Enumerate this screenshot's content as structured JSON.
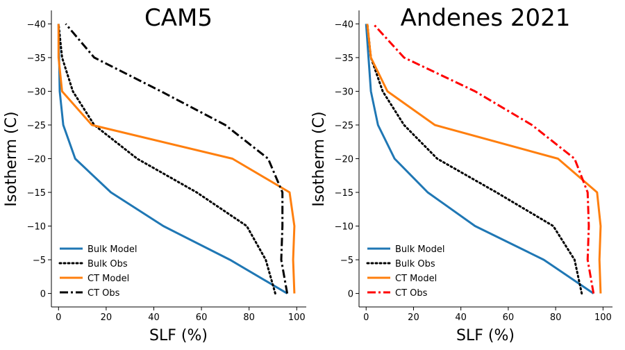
{
  "chart_data": [
    {
      "type": "line",
      "title": "CAM5",
      "xlabel": "SLF (%)",
      "ylabel": "Isotherm (C)",
      "xlim": [
        -3,
        104
      ],
      "ylim": [
        2,
        -42
      ],
      "xticks": [
        0,
        20,
        40,
        60,
        80,
        100
      ],
      "yticks": [
        -40,
        -35,
        -30,
        -25,
        -20,
        -15,
        -10,
        -5,
        0
      ],
      "x_tick_labels": [
        "0",
        "20",
        "40",
        "60",
        "80",
        "100"
      ],
      "y_tick_labels": [
        "−40",
        "−35",
        "−30",
        "−25",
        "−20",
        "−15",
        "−10",
        "−5",
        "0"
      ],
      "legend_position": "lower-left",
      "series": [
        {
          "name": "Bulk Model",
          "color": "#1f77b4",
          "style": "solid",
          "x": [
            96,
            72,
            44,
            22,
            7,
            2,
            0.5,
            0
          ],
          "y": [
            0,
            -5,
            -10,
            -15,
            -20,
            -25,
            -30,
            -40
          ]
        },
        {
          "name": "Bulk Obs",
          "color": "#000000",
          "style": "dotted",
          "x": [
            91,
            87,
            79,
            58,
            33,
            15,
            6,
            1.5,
            0
          ],
          "y": [
            0,
            -5,
            -10,
            -15,
            -20,
            -25,
            -30,
            -35,
            -40
          ]
        },
        {
          "name": "CT Model",
          "color": "#ff7f0e",
          "style": "solid",
          "x": [
            99,
            98.5,
            99,
            97,
            73,
            14,
            1.5,
            0,
            0
          ],
          "y": [
            0,
            -5,
            -10,
            -15,
            -20,
            -25,
            -30,
            -35,
            -40
          ]
        },
        {
          "name": "CT Obs",
          "color": "#000000",
          "style": "dashdot",
          "x": [
            96,
            93.5,
            94,
            94,
            88,
            70,
            43,
            15,
            3
          ],
          "y": [
            0,
            -5,
            -10,
            -15,
            -20,
            -25,
            -30,
            -35,
            -40
          ]
        }
      ]
    },
    {
      "type": "line",
      "title": "Andenes 2021",
      "xlabel": "SLF (%)",
      "ylabel": "Isotherm (C)",
      "xlim": [
        -3,
        104
      ],
      "ylim": [
        2,
        -42
      ],
      "xticks": [
        0,
        20,
        40,
        60,
        80,
        100
      ],
      "yticks": [
        -40,
        -35,
        -30,
        -25,
        -20,
        -15,
        -10,
        -5,
        0
      ],
      "x_tick_labels": [
        "0",
        "20",
        "40",
        "60",
        "80",
        "100"
      ],
      "y_tick_labels": [
        "−40",
        "−35",
        "−30",
        "−25",
        "−20",
        "−15",
        "−10",
        "−5",
        "0"
      ],
      "legend_position": "lower-left",
      "series": [
        {
          "name": "Bulk Model",
          "color": "#1f77b4",
          "style": "solid",
          "x": [
            96,
            75,
            46,
            26,
            12,
            5,
            2,
            0
          ],
          "y": [
            0,
            -5,
            -10,
            -15,
            -20,
            -25,
            -30,
            -40
          ]
        },
        {
          "name": "Bulk Obs",
          "color": "#000000",
          "style": "dotted",
          "x": [
            91,
            88,
            79,
            55,
            30,
            16,
            7,
            2,
            0.5
          ],
          "y": [
            0,
            -5,
            -10,
            -15,
            -20,
            -25,
            -30,
            -35,
            -40
          ]
        },
        {
          "name": "CT Model",
          "color": "#ff7f0e",
          "style": "solid",
          "x": [
            99,
            98.5,
            99,
            97.5,
            81,
            29,
            9,
            2,
            0.5
          ],
          "y": [
            0,
            -5,
            -10,
            -15,
            -20,
            -25,
            -30,
            -35,
            -40
          ]
        },
        {
          "name": "CT Obs",
          "color": "#ff0000",
          "style": "dashdot",
          "x": [
            96,
            93.5,
            94,
            93.5,
            88,
            70,
            46,
            16,
            3
          ],
          "y": [
            0,
            -5,
            -10,
            -15,
            -20,
            -25,
            -30,
            -35,
            -40
          ]
        }
      ]
    }
  ]
}
